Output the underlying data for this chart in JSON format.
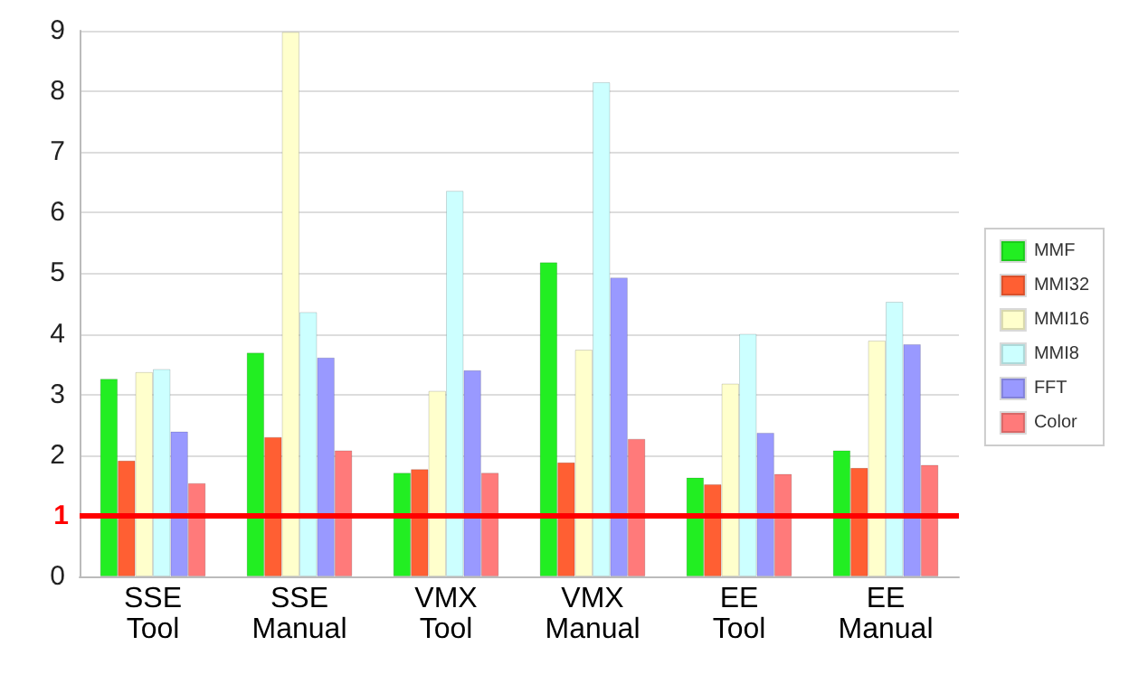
{
  "chart_data": {
    "type": "bar",
    "categories": [
      "SSE\nTool",
      "SSE\nManual",
      "VMX\nTool",
      "VMX\nManual",
      "EE\nTool",
      "EE\nManual"
    ],
    "series": [
      {
        "name": "MMF",
        "color": "#22ee22",
        "values": [
          3.26,
          3.69,
          1.71,
          5.18,
          1.63,
          2.08
        ]
      },
      {
        "name": "MMI32",
        "color": "#ff5f33",
        "values": [
          1.91,
          2.3,
          1.77,
          1.88,
          1.52,
          1.79
        ]
      },
      {
        "name": "MMI16",
        "color": "#ffffcc",
        "values": [
          3.37,
          8.98,
          3.06,
          3.74,
          3.18,
          3.89
        ]
      },
      {
        "name": "MMI8",
        "color": "#ccffff",
        "values": [
          3.42,
          4.36,
          6.36,
          8.15,
          4.0,
          4.53
        ]
      },
      {
        "name": "FFT",
        "color": "#9999ff",
        "values": [
          2.39,
          3.61,
          3.4,
          4.93,
          2.37,
          3.83
        ]
      },
      {
        "name": "Color",
        "color": "#ff7a7a",
        "values": [
          1.54,
          2.08,
          1.71,
          2.27,
          1.69,
          1.84
        ]
      }
    ],
    "ylim": [
      0,
      9
    ],
    "yticks": [
      0,
      {
        "value": 1,
        "label": null
      },
      2,
      3,
      4,
      5,
      6,
      7,
      8,
      9
    ],
    "ref_lines": [
      {
        "axis": "y",
        "value": 1,
        "label": "1",
        "color": "#ff0000",
        "line_style": "solid"
      }
    ],
    "grid": "y",
    "legend": "right"
  }
}
